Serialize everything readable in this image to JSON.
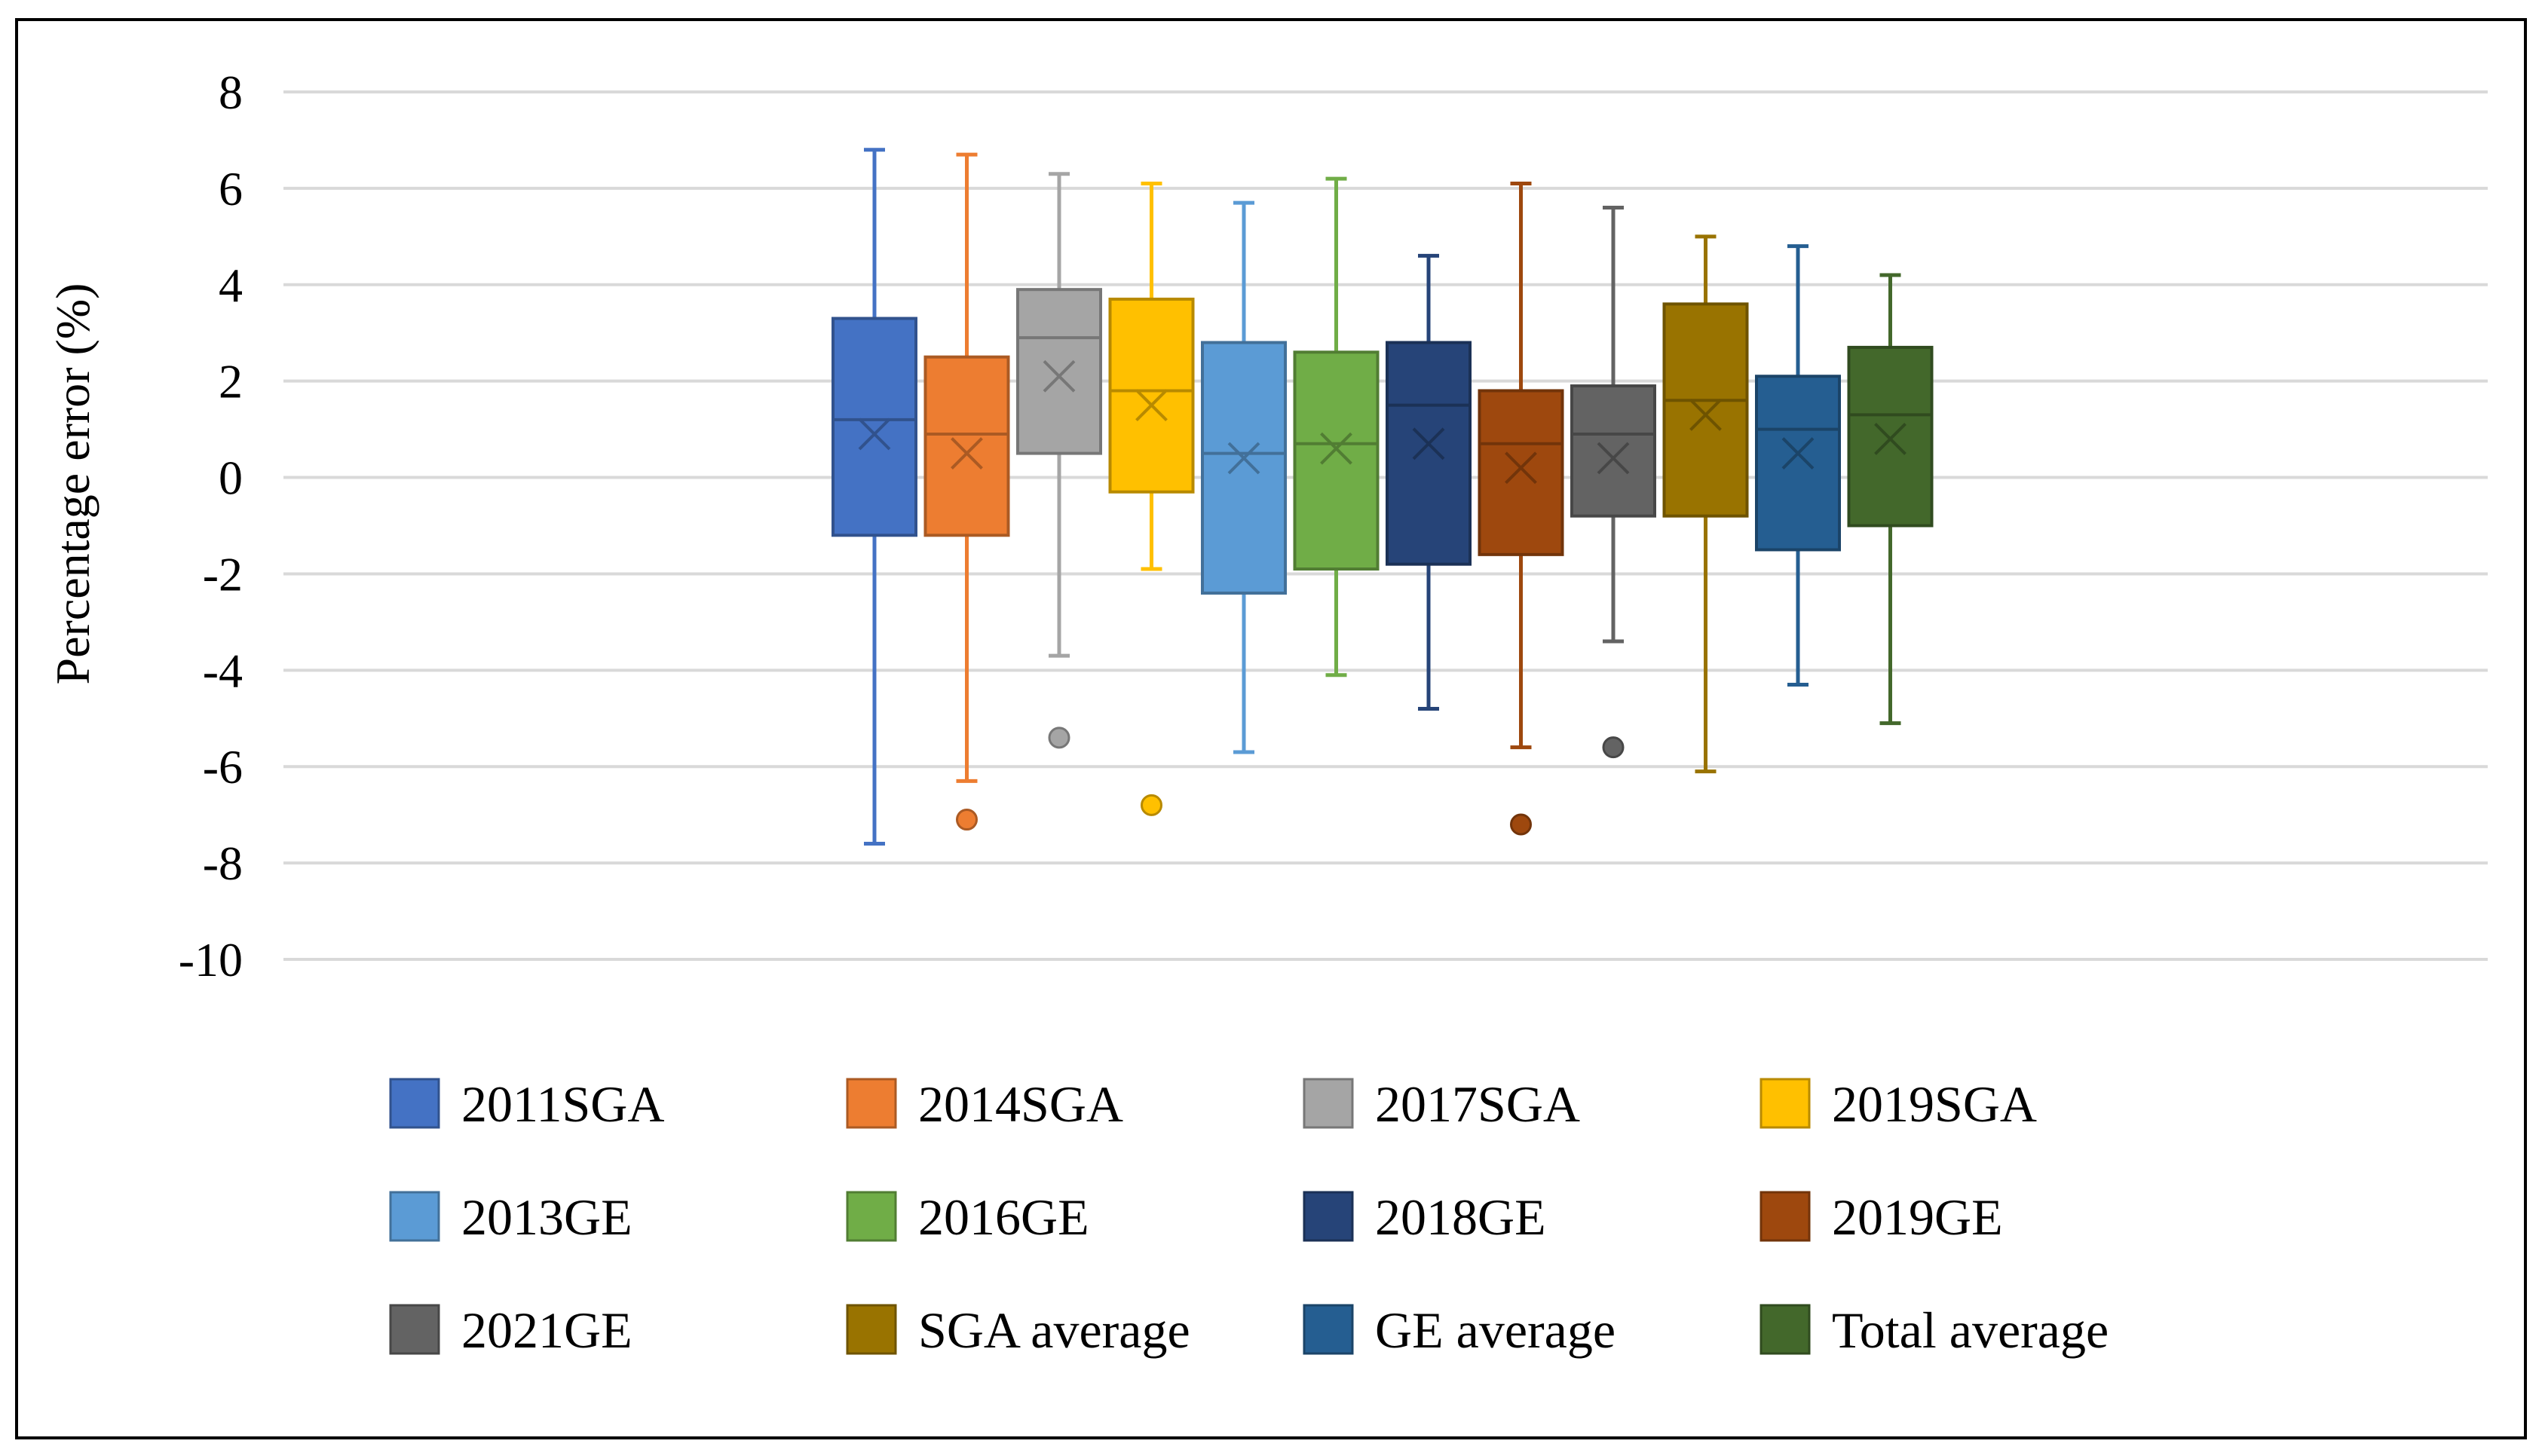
{
  "chart_data": {
    "type": "box",
    "title": "",
    "xlabel": "",
    "ylabel": "Percentage error (%)",
    "ylim": [
      -10,
      8
    ],
    "yticks": [
      8,
      6,
      4,
      2,
      0,
      -2,
      -4,
      -6,
      -8,
      -10
    ],
    "grid": true,
    "legend_position": "bottom",
    "series": [
      {
        "name": "2011SGA",
        "color": "#4472C4",
        "min": -7.6,
        "q1": -1.2,
        "median": 1.2,
        "q3": 3.3,
        "max": 6.8,
        "mean": 0.9,
        "outliers": []
      },
      {
        "name": "2014SGA",
        "color": "#ED7D31",
        "min": -6.3,
        "q1": -1.2,
        "median": 0.9,
        "q3": 2.5,
        "max": 6.7,
        "mean": 0.5,
        "outliers": [
          -7.1
        ]
      },
      {
        "name": "2017SGA",
        "color": "#A5A5A5",
        "min": -3.7,
        "q1": 0.5,
        "median": 2.9,
        "q3": 3.9,
        "max": 6.3,
        "mean": 2.1,
        "outliers": [
          -5.4
        ]
      },
      {
        "name": "2019SGA",
        "color": "#FFC000",
        "min": -1.9,
        "q1": -0.3,
        "median": 1.8,
        "q3": 3.7,
        "max": 6.1,
        "mean": 1.5,
        "outliers": [
          -6.8
        ]
      },
      {
        "name": "2013GE",
        "color": "#5B9BD5",
        "min": -5.7,
        "q1": -2.4,
        "median": 0.5,
        "q3": 2.8,
        "max": 5.7,
        "mean": 0.4,
        "outliers": []
      },
      {
        "name": "2016GE",
        "color": "#70AD47",
        "min": -4.1,
        "q1": -1.9,
        "median": 0.7,
        "q3": 2.6,
        "max": 6.2,
        "mean": 0.6,
        "outliers": []
      },
      {
        "name": "2018GE",
        "color": "#264478",
        "min": -4.8,
        "q1": -1.8,
        "median": 1.5,
        "q3": 2.8,
        "max": 4.6,
        "mean": 0.7,
        "outliers": []
      },
      {
        "name": "2019GE",
        "color": "#9E480E",
        "min": -5.6,
        "q1": -1.6,
        "median": 0.7,
        "q3": 1.8,
        "max": 6.1,
        "mean": 0.2,
        "outliers": [
          -7.2
        ]
      },
      {
        "name": "2021GE",
        "color": "#636363",
        "min": -3.4,
        "q1": -0.8,
        "median": 0.9,
        "q3": 1.9,
        "max": 5.6,
        "mean": 0.4,
        "outliers": [
          -5.6
        ]
      },
      {
        "name": "SGA average",
        "color": "#997300",
        "min": -6.1,
        "q1": -0.8,
        "median": 1.6,
        "q3": 3.6,
        "max": 5.0,
        "mean": 1.3,
        "outliers": []
      },
      {
        "name": "GE average",
        "color": "#255E91",
        "min": -4.3,
        "q1": -1.5,
        "median": 1.0,
        "q3": 2.1,
        "max": 4.8,
        "mean": 0.5,
        "outliers": []
      },
      {
        "name": "Total average",
        "color": "#43682B",
        "min": -5.1,
        "q1": -1.0,
        "median": 1.3,
        "q3": 2.7,
        "max": 4.2,
        "mean": 0.8,
        "outliers": []
      }
    ]
  }
}
